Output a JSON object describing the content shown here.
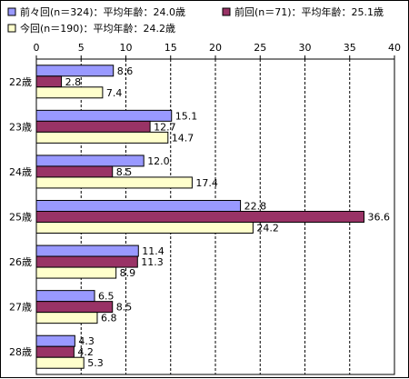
{
  "chart_data": {
    "type": "bar",
    "orientation": "horizontal",
    "categories": [
      "22歳",
      "23歳",
      "24歳",
      "25歳",
      "26歳",
      "27歳",
      "28歳"
    ],
    "series": [
      {
        "name": "前々回(n＝324)：平均年齢：24.0歳",
        "color": "#9999ff",
        "values": [
          8.6,
          15.1,
          12.0,
          22.8,
          11.4,
          6.5,
          4.3
        ],
        "labels": [
          "8.6",
          "15.1",
          "12.0",
          "22.8",
          "11.4",
          "6.5",
          "4.3"
        ]
      },
      {
        "name": "前回(n＝71)：平均年齢：25.1歳",
        "color": "#993366",
        "values": [
          2.8,
          12.7,
          8.5,
          36.6,
          11.3,
          8.5,
          4.2
        ],
        "labels": [
          "2.8",
          "12.7",
          "8.5",
          "36.6",
          "11.3",
          "8.5",
          "4.2"
        ]
      },
      {
        "name": "今回(n＝190)：平均年齢：24.2歳",
        "color": "#ffffcc",
        "values": [
          7.4,
          14.7,
          17.4,
          24.2,
          8.9,
          6.8,
          5.3
        ],
        "labels": [
          "7.4",
          "14.7",
          "17.4",
          "24.2",
          "8.9",
          "6.8",
          "5.3"
        ]
      }
    ],
    "xlim": [
      0,
      40
    ],
    "xticks": [
      "0",
      "5",
      "10",
      "15",
      "20",
      "25",
      "30",
      "35",
      "40"
    ],
    "grid": "vertical dashed",
    "legend_position": "top"
  }
}
